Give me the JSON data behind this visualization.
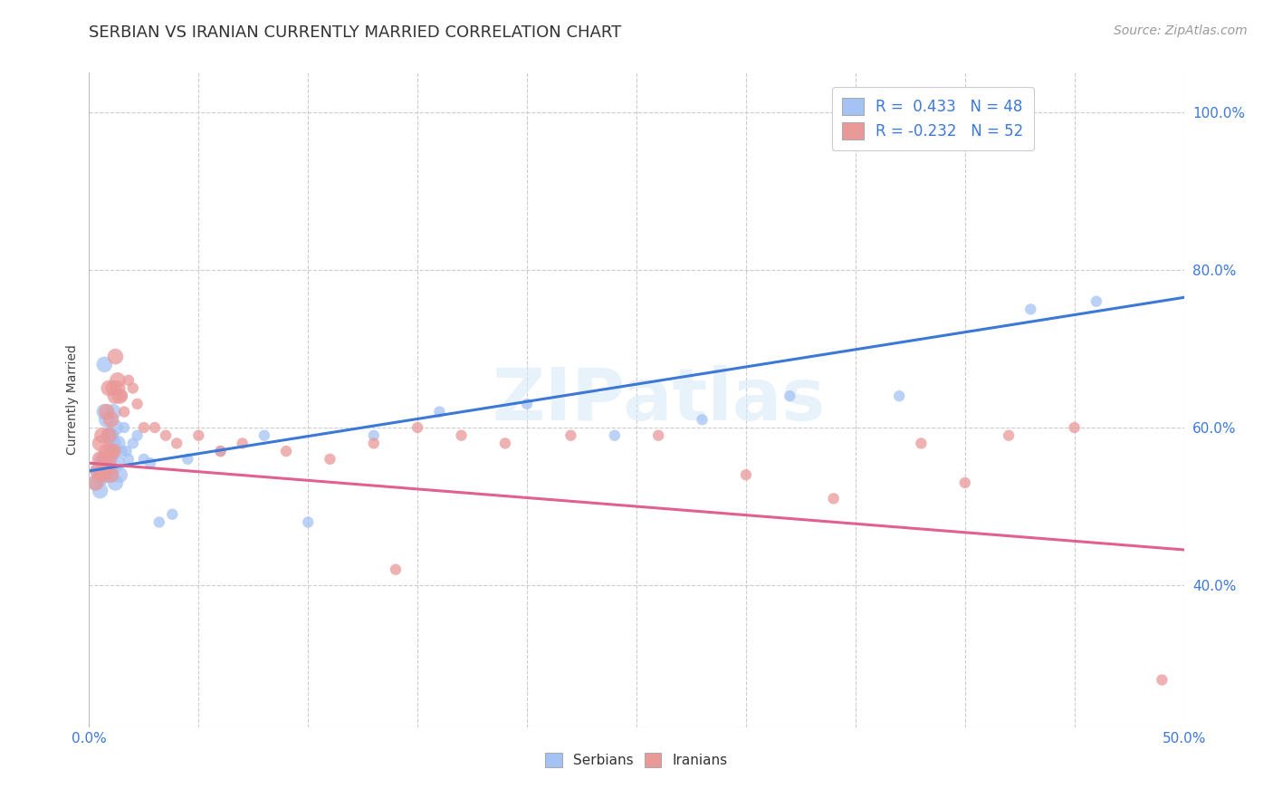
{
  "title": "SERBIAN VS IRANIAN CURRENTLY MARRIED CORRELATION CHART",
  "source_text": "Source: ZipAtlas.com",
  "ylabel": "Currently Married",
  "xlim": [
    0.0,
    0.5
  ],
  "ylim": [
    0.22,
    1.05
  ],
  "xticks": [
    0.0,
    0.05,
    0.1,
    0.15,
    0.2,
    0.25,
    0.3,
    0.35,
    0.4,
    0.45,
    0.5
  ],
  "xticklabels": [
    "0.0%",
    "",
    "",
    "",
    "",
    "",
    "",
    "",
    "",
    "",
    "50.0%"
  ],
  "yticks": [
    0.4,
    0.6,
    0.8,
    1.0
  ],
  "yticklabels": [
    "40.0%",
    "60.0%",
    "80.0%",
    "100.0%"
  ],
  "serbian_color": "#a4c2f4",
  "iranian_color": "#ea9999",
  "trend_serbian_color": "#3c78d8",
  "trend_iranian_color": "#e06090",
  "legend_R_serbian": "R =  0.433",
  "legend_N_serbian": "N = 48",
  "legend_R_iranian": "R = -0.232",
  "legend_N_iranian": "N = 52",
  "watermark": "ZIPatlas",
  "serbian_x": [
    0.003,
    0.004,
    0.005,
    0.005,
    0.006,
    0.006,
    0.007,
    0.007,
    0.007,
    0.008,
    0.008,
    0.008,
    0.009,
    0.009,
    0.009,
    0.01,
    0.01,
    0.01,
    0.011,
    0.011,
    0.012,
    0.012,
    0.013,
    0.013,
    0.014,
    0.015,
    0.016,
    0.017,
    0.018,
    0.02,
    0.022,
    0.025,
    0.028,
    0.032,
    0.038,
    0.045,
    0.06,
    0.08,
    0.1,
    0.13,
    0.16,
    0.2,
    0.24,
    0.28,
    0.32,
    0.37,
    0.43,
    0.46
  ],
  "serbian_y": [
    0.53,
    0.545,
    0.535,
    0.52,
    0.56,
    0.545,
    0.54,
    0.62,
    0.68,
    0.55,
    0.61,
    0.56,
    0.555,
    0.59,
    0.54,
    0.565,
    0.59,
    0.545,
    0.58,
    0.62,
    0.6,
    0.53,
    0.58,
    0.555,
    0.54,
    0.57,
    0.6,
    0.57,
    0.56,
    0.58,
    0.59,
    0.56,
    0.555,
    0.48,
    0.49,
    0.56,
    0.57,
    0.59,
    0.48,
    0.59,
    0.62,
    0.63,
    0.59,
    0.61,
    0.64,
    0.64,
    0.75,
    0.76
  ],
  "iranian_x": [
    0.003,
    0.004,
    0.005,
    0.005,
    0.006,
    0.006,
    0.007,
    0.007,
    0.008,
    0.008,
    0.008,
    0.009,
    0.009,
    0.009,
    0.01,
    0.01,
    0.01,
    0.011,
    0.011,
    0.012,
    0.012,
    0.013,
    0.013,
    0.014,
    0.015,
    0.016,
    0.018,
    0.02,
    0.022,
    0.025,
    0.03,
    0.035,
    0.04,
    0.05,
    0.06,
    0.07,
    0.09,
    0.11,
    0.13,
    0.15,
    0.17,
    0.19,
    0.22,
    0.26,
    0.3,
    0.34,
    0.38,
    0.4,
    0.42,
    0.45,
    0.14,
    0.49
  ],
  "iranian_y": [
    0.53,
    0.545,
    0.56,
    0.58,
    0.54,
    0.59,
    0.55,
    0.56,
    0.57,
    0.62,
    0.545,
    0.59,
    0.56,
    0.65,
    0.57,
    0.61,
    0.54,
    0.65,
    0.57,
    0.64,
    0.69,
    0.65,
    0.66,
    0.64,
    0.64,
    0.62,
    0.66,
    0.65,
    0.63,
    0.6,
    0.6,
    0.59,
    0.58,
    0.59,
    0.57,
    0.58,
    0.57,
    0.56,
    0.58,
    0.6,
    0.59,
    0.58,
    0.59,
    0.59,
    0.54,
    0.51,
    0.58,
    0.53,
    0.59,
    0.6,
    0.42,
    0.28
  ],
  "title_fontsize": 13,
  "axis_label_fontsize": 10,
  "tick_fontsize": 11,
  "bottom_legend_labels": [
    "Serbians",
    "Iranians"
  ]
}
